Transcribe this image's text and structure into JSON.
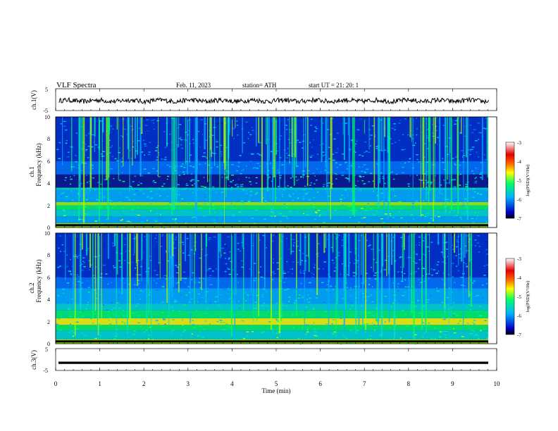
{
  "header": {
    "title": "VLF  Spectra",
    "date": "Feb. 11, 2023",
    "station": "station= ATH",
    "start": "start  UT  =    21: 20: 1"
  },
  "colors": {
    "spectrogram_background": "#0a1a8c",
    "colorbar_stops": [
      "#000000",
      "#0000c8",
      "#00b4ff",
      "#00ff66",
      "#ffff00",
      "#ff6600",
      "#e60000",
      "#ffffff"
    ],
    "trace": "#000000"
  },
  "chart_data": [
    {
      "type": "line",
      "ylabel": "ch.1(V)",
      "ylim": [
        -5,
        5
      ],
      "yticks": [
        "5",
        "-5"
      ],
      "series": [
        {
          "values_summary": "noisy signal around -0.5 V"
        }
      ]
    },
    {
      "type": "heatmap",
      "ylabel": "ch.1\nFrequency  (kHz)",
      "ylim": [
        0,
        10
      ],
      "yticks": [
        "0",
        "2",
        "4",
        "6",
        "8",
        "10"
      ],
      "xlim": [
        0,
        10
      ],
      "colorbar": {
        "label": "log(PSD)(V²/Hz)",
        "ticks": [
          "-3",
          "-4",
          "-5",
          "-6",
          "-7"
        ],
        "range": [
          -7,
          -3
        ]
      }
    },
    {
      "type": "heatmap",
      "ylabel": "ch.2\nFrequency  (kHz)",
      "ylim": [
        0,
        10
      ],
      "yticks": [
        "0",
        "2",
        "4",
        "6",
        "8",
        "10"
      ],
      "xlim": [
        0,
        10
      ],
      "colorbar": {
        "label": "log(PSD)(V²/Hz)",
        "ticks": [
          "-3",
          "-4",
          "-5",
          "-6",
          "-7"
        ],
        "range": [
          -7,
          -3
        ]
      }
    },
    {
      "type": "line",
      "ylabel": "ch.3(V)",
      "ylim": [
        -5,
        5
      ],
      "yticks": [
        "5",
        "-5"
      ],
      "series": [
        {
          "values_summary": "flat signal near -1.5 V"
        }
      ]
    }
  ],
  "xaxis": {
    "label": "Time  (min)",
    "ticks": [
      "0",
      "1",
      "2",
      "3",
      "4",
      "5",
      "6",
      "7",
      "8",
      "9",
      "10"
    ],
    "range": [
      0,
      10
    ]
  }
}
